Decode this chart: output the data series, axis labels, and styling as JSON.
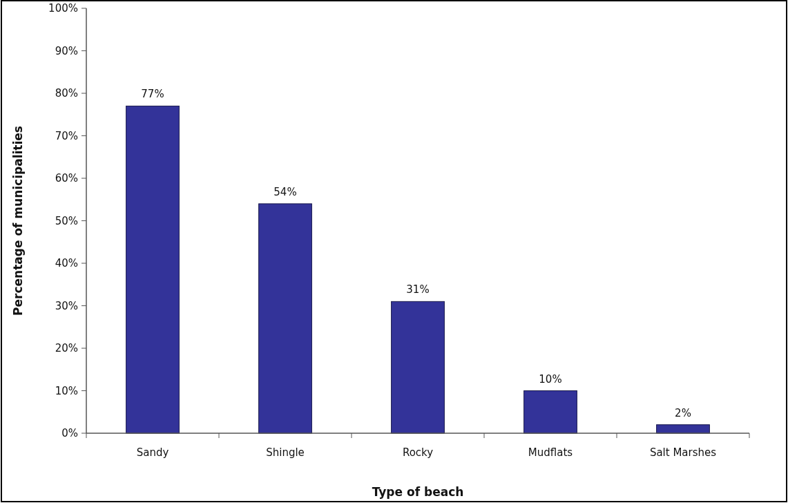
{
  "chart_data": {
    "type": "bar",
    "xlabel": "Type of beach",
    "ylabel": "Percentage of municipalities",
    "categories": [
      "Sandy",
      "Shingle",
      "Rocky",
      "Mudflats",
      "Salt Marshes"
    ],
    "values": [
      77,
      54,
      31,
      10,
      2
    ],
    "value_labels": [
      "77%",
      "54%",
      "31%",
      "10%",
      "2%"
    ],
    "color": "#333399",
    "ylim": [
      0,
      100
    ],
    "yticks": [
      {
        "value": 0,
        "label": "0%"
      },
      {
        "value": 10,
        "label": "10%"
      },
      {
        "value": 20,
        "label": "20%"
      },
      {
        "value": 30,
        "label": "30%"
      },
      {
        "value": 40,
        "label": "40%"
      },
      {
        "value": 50,
        "label": "50%"
      },
      {
        "value": 60,
        "label": "60%"
      },
      {
        "value": 70,
        "label": "70%"
      },
      {
        "value": 80,
        "label": "80%"
      },
      {
        "value": 90,
        "label": "90%"
      },
      {
        "value": 100,
        "label": "100%"
      }
    ]
  }
}
